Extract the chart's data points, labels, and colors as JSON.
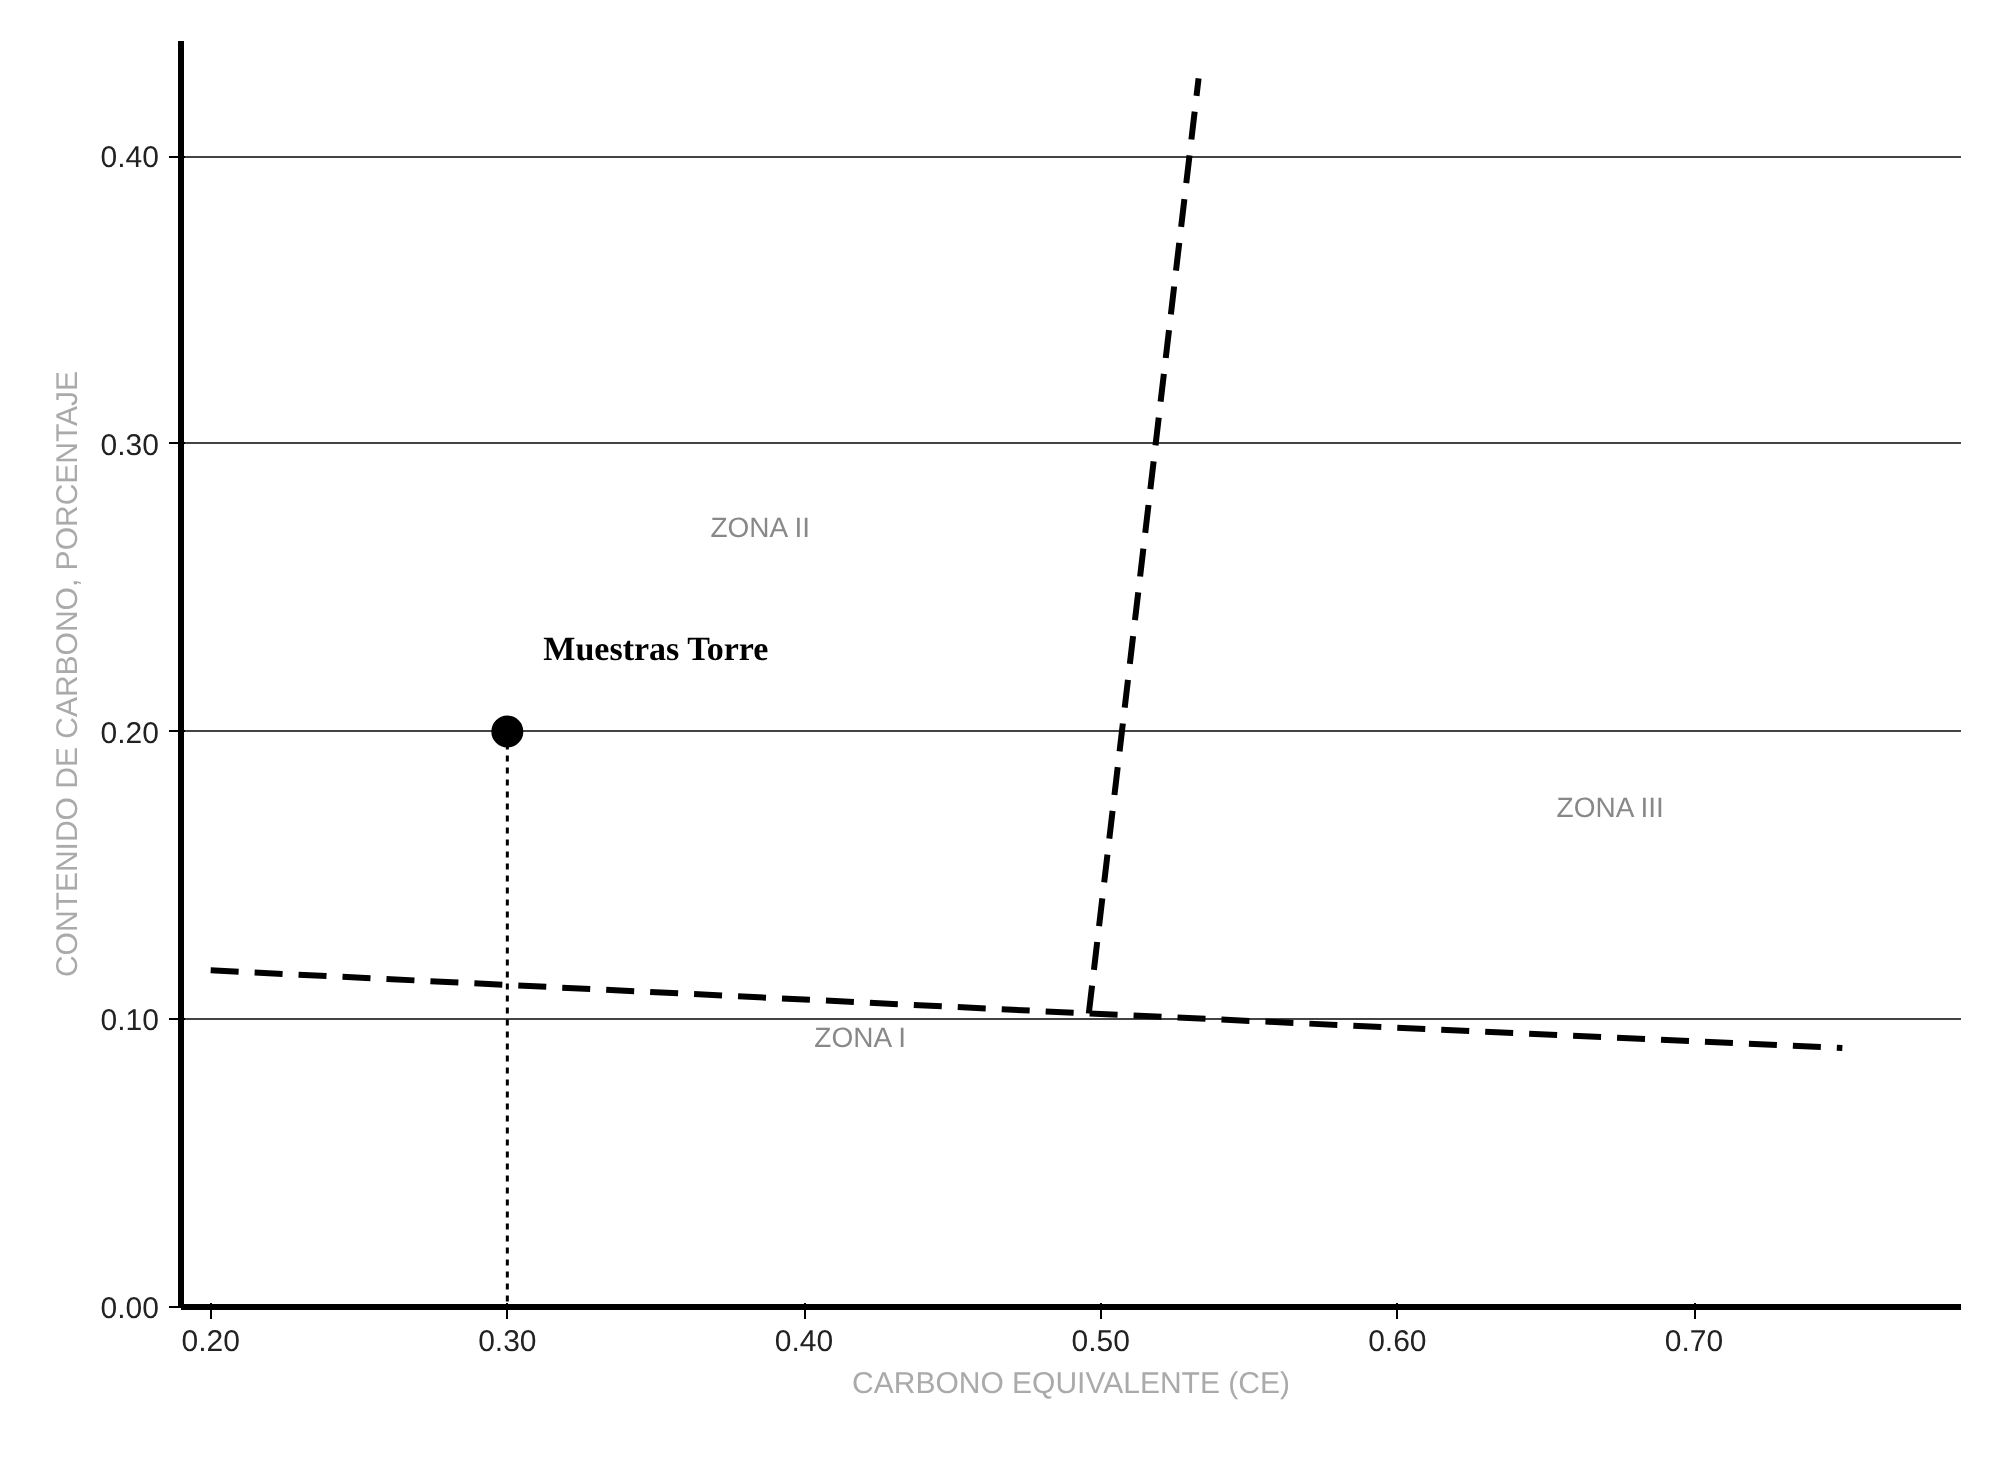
{
  "chart_data": {
    "type": "line",
    "xlabel": "CARBONO EQUIVALENTE (CE)",
    "ylabel": "CONTENIDO DE CARBONO, PORCENTAJE",
    "xlim": [
      0.19,
      0.79
    ],
    "ylim": [
      0,
      0.44
    ],
    "xticks": [
      {
        "value": 0.2,
        "label": "0.20"
      },
      {
        "value": 0.3,
        "label": "0.30"
      },
      {
        "value": 0.4,
        "label": "0.40"
      },
      {
        "value": 0.5,
        "label": "0.50"
      },
      {
        "value": 0.6,
        "label": "0.60"
      },
      {
        "value": 0.7,
        "label": "0.70"
      }
    ],
    "yticks": [
      {
        "value": 0,
        "label": "0.00"
      },
      {
        "value": 0.1,
        "label": "0.10"
      },
      {
        "value": 0.2,
        "label": "0.20"
      },
      {
        "value": 0.3,
        "label": "0.30"
      },
      {
        "value": 0.4,
        "label": "0.40"
      }
    ],
    "grid": "y",
    "legend": false,
    "series": [
      {
        "line_style": "dashed",
        "color": "#000000",
        "x": [
          0.2,
          0.496,
          0.75
        ],
        "values": [
          0.117,
          0.102,
          0.09
        ]
      },
      {
        "line_style": "dashed",
        "color": "#000000",
        "x": [
          0.496,
          0.533
        ],
        "values": [
          0.102,
          0.427
        ]
      },
      {
        "line_style": "dotted",
        "color": "#000000",
        "x": [
          0.3,
          0.3
        ],
        "values": [
          0.2,
          0
        ]
      },
      {
        "type": "scatter",
        "marker": "circle",
        "name": "Muestras Torre",
        "color": "#000000",
        "x": [
          0.3
        ],
        "values": [
          0.2
        ]
      }
    ],
    "annotations": [
      "ZONA I",
      "ZONA II",
      "ZONA III"
    ]
  }
}
